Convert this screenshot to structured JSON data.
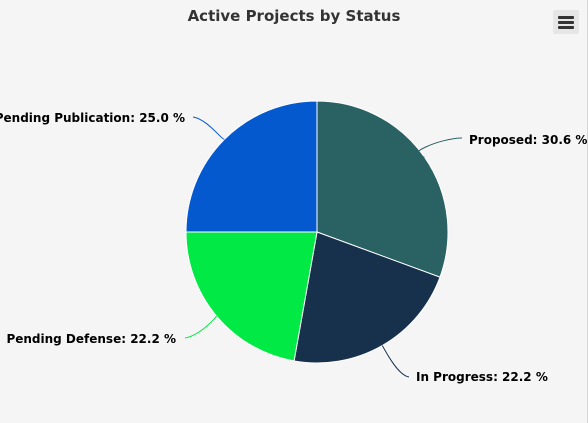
{
  "chart_data": {
    "type": "pie",
    "title": "Active Projects by Status",
    "slices": [
      {
        "name": "Proposed",
        "value": 30.6,
        "label": "Proposed: 30.6 %",
        "color": "#2a6162"
      },
      {
        "name": "In Progress",
        "value": 22.2,
        "label": "In Progress: 22.2 %",
        "color": "#17314d"
      },
      {
        "name": "Pending Defense",
        "value": 22.2,
        "label": "Pending Defense: 22.2 %",
        "color": "#00e944"
      },
      {
        "name": "Pending Publication",
        "value": 25.0,
        "label": "Pending Publication: 25.0 %",
        "color": "#0459cf"
      }
    ]
  },
  "menu": {
    "icon": "hamburger-menu-icon"
  }
}
